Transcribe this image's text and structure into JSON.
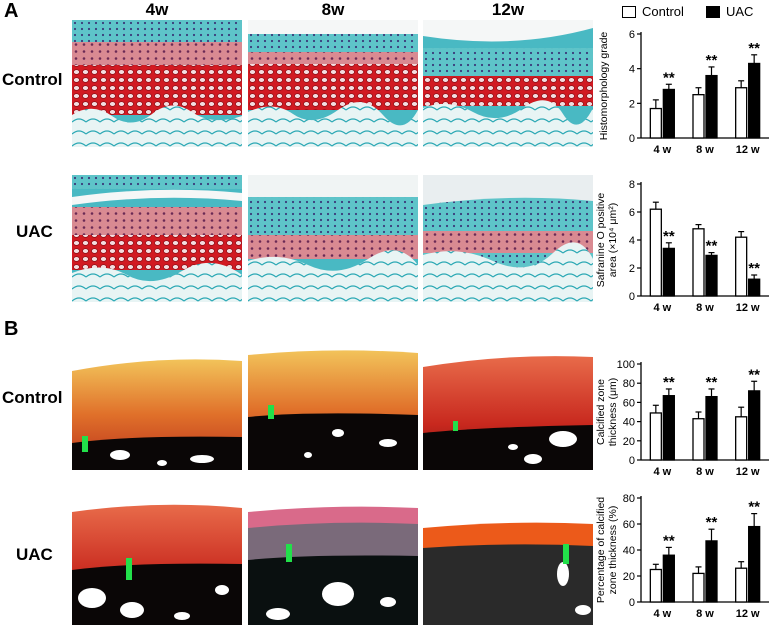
{
  "panels": {
    "a_label": "A",
    "b_label": "B"
  },
  "columns": [
    "4w",
    "8w",
    "12w"
  ],
  "rows": {
    "control": "Control",
    "uac": "UAC"
  },
  "legend": {
    "control": "Control",
    "uac": "UAC"
  },
  "colors": {
    "safranin_red": "#c8141e",
    "fast_green": "#3bb6c2",
    "control_bar": "#ffffff",
    "uac_bar": "#000000",
    "marker_green": "#22e04a"
  },
  "chart_data": [
    {
      "type": "bar",
      "ylabel": "Histomorphology grade",
      "ylim": [
        0,
        6
      ],
      "yticks": [
        0,
        2,
        4,
        6
      ],
      "categories": [
        "4 w",
        "8 w",
        "12 w"
      ],
      "series": [
        {
          "name": "Control",
          "values": [
            1.7,
            2.5,
            2.9
          ],
          "errors": [
            0.5,
            0.4,
            0.4
          ]
        },
        {
          "name": "UAC",
          "values": [
            2.8,
            3.6,
            4.3
          ],
          "errors": [
            0.3,
            0.5,
            0.5
          ]
        }
      ],
      "annotations": [
        "**",
        "**",
        "**"
      ]
    },
    {
      "type": "bar",
      "ylabel": "Safranine O positive area (×10⁴ μm²)",
      "ylim": [
        0,
        8
      ],
      "yticks": [
        0,
        2,
        4,
        6,
        8
      ],
      "categories": [
        "4 w",
        "8 w",
        "12 w"
      ],
      "series": [
        {
          "name": "Control",
          "values": [
            6.2,
            4.8,
            4.2
          ],
          "errors": [
            0.5,
            0.3,
            0.4
          ]
        },
        {
          "name": "UAC",
          "values": [
            3.4,
            2.9,
            1.2
          ],
          "errors": [
            0.4,
            0.2,
            0.3
          ]
        }
      ],
      "annotations": [
        "**",
        "**",
        "**"
      ]
    },
    {
      "type": "bar",
      "ylabel": "Calcified zone thickness (μm)",
      "ylim": [
        0,
        100
      ],
      "yticks": [
        0,
        20,
        40,
        60,
        80,
        100
      ],
      "categories": [
        "4 w",
        "8 w",
        "12 w"
      ],
      "series": [
        {
          "name": "Control",
          "values": [
            49,
            43,
            45
          ],
          "errors": [
            8,
            7,
            10
          ]
        },
        {
          "name": "UAC",
          "values": [
            67,
            66,
            72
          ],
          "errors": [
            7,
            8,
            10
          ]
        }
      ],
      "annotations": [
        "**",
        "**",
        "**"
      ]
    },
    {
      "type": "bar",
      "ylabel": "Percentage of calcified zone thickness (%)",
      "ylim": [
        0,
        80
      ],
      "yticks": [
        0,
        20,
        40,
        60,
        80
      ],
      "categories": [
        "4 w",
        "8 w",
        "12 w"
      ],
      "series": [
        {
          "name": "Control",
          "values": [
            25,
            22,
            26
          ],
          "errors": [
            4,
            5,
            5
          ]
        },
        {
          "name": "UAC",
          "values": [
            36,
            47,
            58
          ],
          "errors": [
            6,
            9,
            10
          ]
        }
      ],
      "annotations": [
        "**",
        "**",
        "**"
      ]
    }
  ]
}
